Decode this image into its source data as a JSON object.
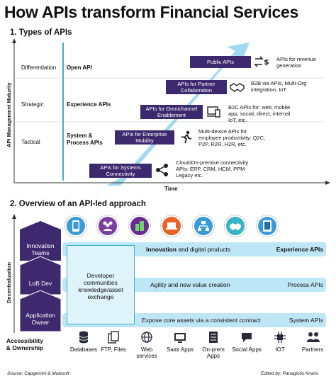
{
  "title": "How APIs transform Financial Services",
  "section1": {
    "heading": "1. Types of APIs",
    "y_axis_label": "API Management Maturity",
    "x_axis_label": "Time",
    "rows": [
      {
        "level": "Differentiation",
        "type": "Open API"
      },
      {
        "level": "Strategic",
        "type": "Experience APIs"
      },
      {
        "level": "Tactical",
        "type": "System & Process APIs"
      }
    ],
    "stages": [
      {
        "tag": "Public APIs",
        "icon": "exchange-dollar-icon",
        "desc": "APIs for revenue generation"
      },
      {
        "tag": "APIs for Partner Collaboration",
        "icon": "handshake-icon",
        "desc": "B2B via APIs, Multi-Org integration, IoT"
      },
      {
        "tag": "APIs for Omnichannel Enablement",
        "icon": "omnichannel-icon",
        "desc": "B2C APIs for: web, mobile app, social, direct, internal IoT, etc."
      },
      {
        "tag": "APIs for Enterprise Mobility",
        "icon": "running-person-icon",
        "desc": "Multi-device APIs for employee productivity: Q2C, P2P, R2R, H2R, etc."
      },
      {
        "tag": "APIs for Systems Connectivity",
        "icon": "network-share-icon",
        "desc": "Cloud/On-premise connectivity APIs: ERP, CRM, HCM, PPM Legacy etc."
      }
    ]
  },
  "section2": {
    "heading": "2. Overview of an API-led approach",
    "y_axis_label": "Decentralization",
    "top_icons": [
      "smartphone-icon",
      "people-icon",
      "building-icon",
      "laptop-icon",
      "network-icon",
      "handshake-icon",
      "tablet-icon"
    ],
    "center_box": "Developer communities knowledge/asset exchange",
    "layers": [
      {
        "owner": "Innovation Teams",
        "text": "Innovation",
        "text_rest": " and digital products",
        "api": "Experience APIs"
      },
      {
        "owner": "LoB Dev",
        "text": "Agility and new value creation",
        "text_rest": "",
        "api": "Process APIs"
      },
      {
        "owner": "Application Owner",
        "text": "Expose core assets via a consistent contract",
        "text_rest": "",
        "api": "System APIs"
      }
    ],
    "accountability_label": "Accessibility & Ownership",
    "bottom_items": [
      {
        "label": "Databases",
        "icon": "database-icon"
      },
      {
        "label": "FTP, Files",
        "icon": "files-icon"
      },
      {
        "label": "Web services",
        "icon": "globe-icon"
      },
      {
        "label": "Saas Apps",
        "icon": "saas-icon"
      },
      {
        "label": "On-prem Apps",
        "icon": "server-icon"
      },
      {
        "label": "Social Apps",
        "icon": "social-icon"
      },
      {
        "label": "IOT",
        "icon": "iot-icon"
      },
      {
        "label": "Partners",
        "icon": "partners-icon"
      }
    ]
  },
  "footer": {
    "source": "Source: Capgemini & Mulesoft",
    "credit": "Edited by: Panagiotis Kriaris"
  },
  "colors": {
    "purple": "#3d2a6e",
    "light_blue": "#bfe6f7",
    "arrow_blue": "#8ed3f0",
    "tag_purple": "#5b4596",
    "icon_colors": [
      "#3a9bd9",
      "#7b3fa0",
      "#6a2c91",
      "#e8622a",
      "#3a9bd9",
      "#39b3c7",
      "#3a9bd9"
    ]
  }
}
